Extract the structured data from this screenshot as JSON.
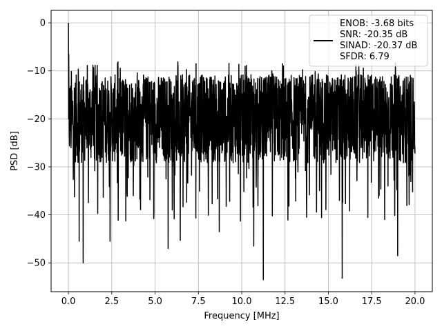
{
  "chart_data": {
    "type": "line",
    "title": "",
    "xlabel": "Frequency [MHz]",
    "ylabel": "PSD [dB]",
    "xlim": [
      -0.999,
      20.999
    ],
    "ylim": [
      -56.0,
      2.6
    ],
    "xticks": [
      0.0,
      2.5,
      5.0,
      7.5,
      10.0,
      12.5,
      15.0,
      17.5,
      20.0
    ],
    "xtick_labels": [
      "0.0",
      "2.5",
      "5.0",
      "7.5",
      "10.0",
      "12.5",
      "15.0",
      "17.5",
      "20.0"
    ],
    "yticks": [
      0,
      -10,
      -20,
      -30,
      -40,
      -50
    ],
    "ytick_labels": [
      "0",
      "−10",
      "−20",
      "−30",
      "−40",
      "−50"
    ],
    "grid": true,
    "legend": {
      "placement": "top-right",
      "entries": [
        "ENOB: -3.68 bits",
        "SNR: -20.35 dB",
        "SINAD: -20.37 dB",
        "SFDR: 6.79"
      ]
    },
    "series": [
      {
        "color": "#000000",
        "x_range": [
          0.0,
          20.0
        ],
        "points": 2000,
        "peak": {
          "x": 0.0,
          "y": 0.0
        },
        "noise_floor_band": [
          -28,
          -12
        ],
        "notable_dips": [
          {
            "x": 0.85,
            "y": -50.0
          },
          {
            "x": 0.62,
            "y": -45.5
          },
          {
            "x": 2.4,
            "y": -45.5
          },
          {
            "x": 5.75,
            "y": -47.0
          },
          {
            "x": 6.45,
            "y": -45.3
          },
          {
            "x": 8.7,
            "y": -43.5
          },
          {
            "x": 10.7,
            "y": -46.5
          },
          {
            "x": 11.25,
            "y": -53.5
          },
          {
            "x": 13.75,
            "y": -40.5
          },
          {
            "x": 15.8,
            "y": -53.2
          },
          {
            "x": 19.0,
            "y": -48.5
          }
        ]
      }
    ]
  }
}
